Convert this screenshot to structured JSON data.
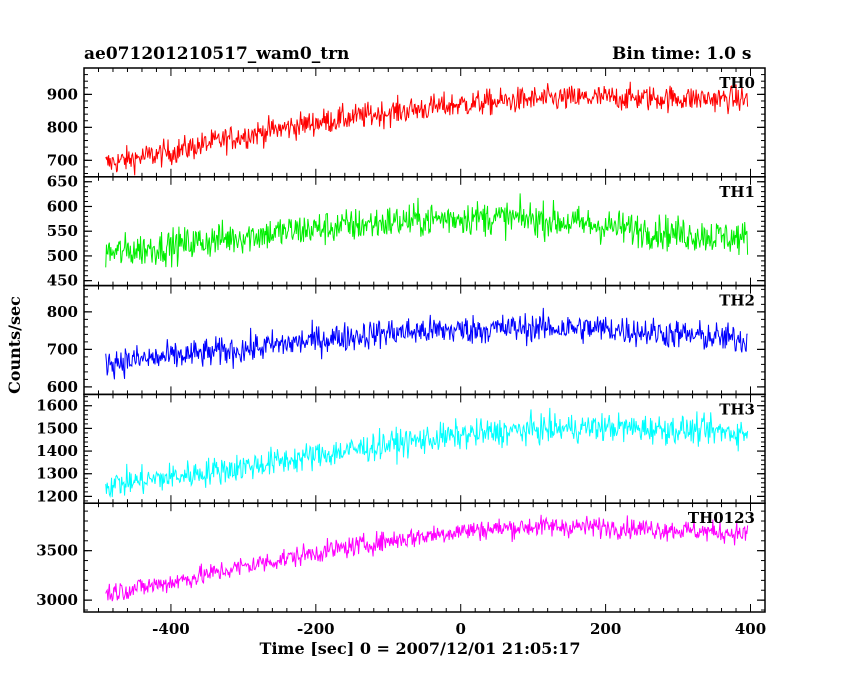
{
  "header": {
    "title": "ae071201210517_wam0_trn",
    "bin_time": "Bin time: 1.0 s"
  },
  "chart_data": {
    "type": "line",
    "title": "ae071201210517_wam0_trn",
    "subtitle": "Bin time: 1.0 s",
    "xlabel": "Time [sec] 0 = 2007/12/01 21:05:17",
    "ylabel": "Counts/sec",
    "xlim": [
      -520,
      420
    ],
    "x_ticks": [
      -400,
      -200,
      0,
      200,
      400
    ],
    "x_range_data": [
      -490,
      396
    ],
    "bin": 1.0,
    "grid": false,
    "panels": [
      {
        "name": "TH0",
        "color": "#ff0000",
        "ylim": [
          650,
          980
        ],
        "y_ticks": [
          700,
          800,
          900
        ],
        "trend": [
          [
            -490,
            690
          ],
          [
            -400,
            725
          ],
          [
            -300,
            775
          ],
          [
            -200,
            815
          ],
          [
            -100,
            845
          ],
          [
            0,
            870
          ],
          [
            100,
            885
          ],
          [
            200,
            890
          ],
          [
            300,
            888
          ],
          [
            396,
            885
          ]
        ],
        "noise_amplitude": 28
      },
      {
        "name": "TH1",
        "color": "#00ee00",
        "ylim": [
          440,
          660
        ],
        "y_ticks": [
          450,
          500,
          550,
          600,
          650
        ],
        "trend": [
          [
            -490,
            505
          ],
          [
            -400,
            520
          ],
          [
            -300,
            540
          ],
          [
            -200,
            555
          ],
          [
            -100,
            568
          ],
          [
            0,
            578
          ],
          [
            100,
            575
          ],
          [
            200,
            560
          ],
          [
            300,
            545
          ],
          [
            396,
            535
          ]
        ],
        "noise_amplitude": 25
      },
      {
        "name": "TH2",
        "color": "#0000ff",
        "ylim": [
          580,
          870
        ],
        "y_ticks": [
          600,
          700,
          800
        ],
        "trend": [
          [
            -490,
            665
          ],
          [
            -400,
            680
          ],
          [
            -300,
            700
          ],
          [
            -200,
            725
          ],
          [
            -100,
            745
          ],
          [
            0,
            752
          ],
          [
            100,
            758
          ],
          [
            200,
            755
          ],
          [
            300,
            740
          ],
          [
            396,
            725
          ]
        ],
        "noise_amplitude": 28
      },
      {
        "name": "TH3",
        "color": "#00ffff",
        "ylim": [
          1170,
          1650
        ],
        "y_ticks": [
          1200,
          1300,
          1400,
          1500,
          1600
        ],
        "trend": [
          [
            -490,
            1250
          ],
          [
            -400,
            1285
          ],
          [
            -300,
            1330
          ],
          [
            -200,
            1380
          ],
          [
            -100,
            1430
          ],
          [
            0,
            1470
          ],
          [
            100,
            1495
          ],
          [
            200,
            1505
          ],
          [
            300,
            1495
          ],
          [
            396,
            1480
          ]
        ],
        "noise_amplitude": 45
      },
      {
        "name": "TH0123",
        "color": "#ff00ff",
        "ylim": [
          2880,
          3980
        ],
        "y_ticks": [
          3000,
          3500
        ],
        "trend": [
          [
            -490,
            3070
          ],
          [
            -400,
            3180
          ],
          [
            -300,
            3340
          ],
          [
            -200,
            3480
          ],
          [
            -100,
            3600
          ],
          [
            0,
            3700
          ],
          [
            100,
            3745
          ],
          [
            200,
            3740
          ],
          [
            300,
            3710
          ],
          [
            396,
            3670
          ]
        ],
        "noise_amplitude": 75
      }
    ]
  }
}
